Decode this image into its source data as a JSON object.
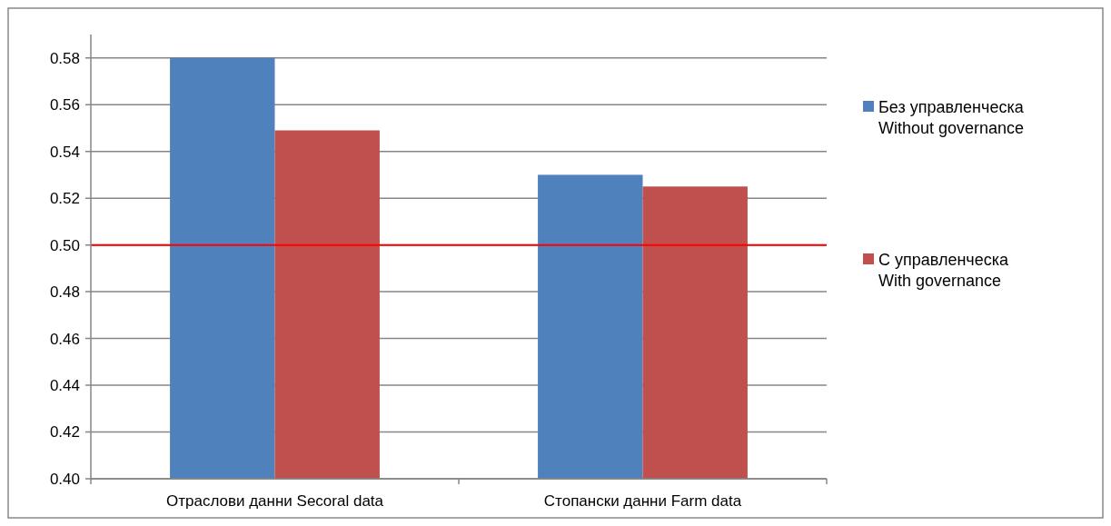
{
  "chart_data": {
    "type": "bar",
    "categories": [
      "Отраслови данни Secoral data",
      "Стопански данни Farm data"
    ],
    "series": [
      {
        "name": "Без управленческа\nWithout governance",
        "color": "#4f81bd",
        "values": [
          0.58,
          0.53
        ]
      },
      {
        "name": "С управленческа\nWith governance",
        "color": "#c0504d",
        "values": [
          0.549,
          0.525
        ]
      }
    ],
    "ylim": [
      0.4,
      0.59
    ],
    "yticks": [
      {
        "value": 0.4,
        "label": "0.40"
      },
      {
        "value": 0.42,
        "label": "0.42"
      },
      {
        "value": 0.44,
        "label": "0.44"
      },
      {
        "value": 0.46,
        "label": "0.46"
      },
      {
        "value": 0.48,
        "label": "0.48"
      },
      {
        "value": 0.5,
        "label": "0.50"
      },
      {
        "value": 0.52,
        "label": "0.52"
      },
      {
        "value": 0.54,
        "label": "0.54"
      },
      {
        "value": 0.56,
        "label": "0.56"
      },
      {
        "value": 0.58,
        "label": "0.58"
      }
    ],
    "grid": "y",
    "legend": "right",
    "ref_lines": [
      {
        "axis": "y",
        "value": 0.5,
        "color": "#ff0000"
      }
    ]
  }
}
